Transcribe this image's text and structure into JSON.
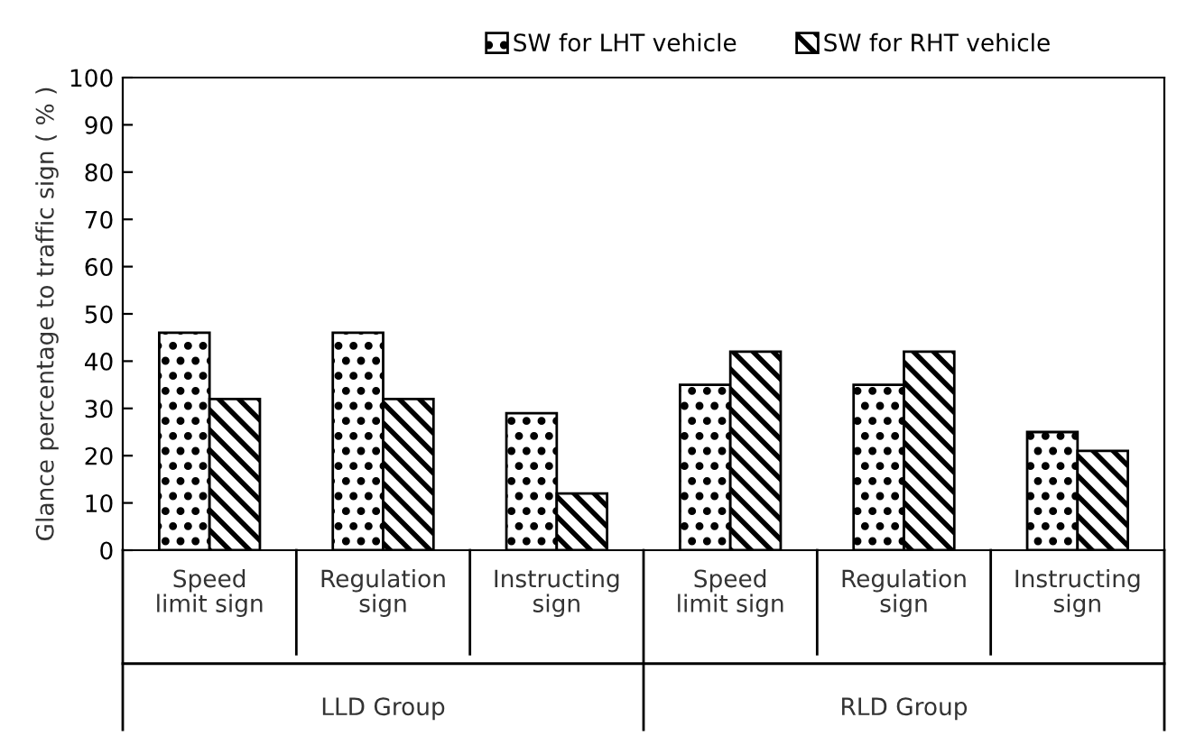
{
  "chart_data": {
    "type": "bar",
    "ylabel": "Glance percentage to traffic sign ( % )",
    "categories": [
      "Speed\nlimit sign",
      "Regulation\nsign",
      "Instructing\nsign",
      "Speed\nlimit sign",
      "Regulation\nsign",
      "Instructing\nsign"
    ],
    "series": [
      {
        "name": "SW for LHT vehicle",
        "color": "#000000",
        "values": [
          46,
          46,
          29,
          35,
          35,
          25
        ]
      },
      {
        "name": "SW for RHT vehicle",
        "color": "#000000",
        "values": [
          32,
          32,
          12,
          42,
          42,
          21
        ]
      }
    ],
    "annotations": [
      "LLD Group",
      "RLD Group"
    ],
    "ylim": [
      0,
      100
    ],
    "yticks": [
      0,
      10,
      20,
      30,
      40,
      50,
      60,
      70,
      80,
      90,
      100
    ],
    "grid": false,
    "legend": "top"
  }
}
